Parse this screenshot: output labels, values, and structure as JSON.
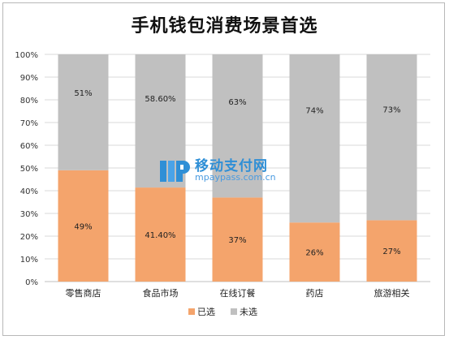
{
  "chart_data": {
    "type": "bar",
    "stacked": true,
    "percent": true,
    "title": "手机钱包消费场景首选",
    "categories": [
      "零售商店",
      "食品市场",
      "在线订餐",
      "药店",
      "旅游相关"
    ],
    "series": [
      {
        "name": "已选",
        "values": [
          49,
          41.4,
          37,
          26,
          27
        ],
        "labels": [
          "49%",
          "41.40%",
          "37%",
          "26%",
          "27%"
        ],
        "color": "#f4a46c"
      },
      {
        "name": "未选",
        "values": [
          51,
          58.6,
          63,
          74,
          73
        ],
        "labels": [
          "51%",
          "58.60%",
          "63%",
          "74%",
          "73%"
        ],
        "color": "#c0c0c0"
      }
    ],
    "yticks": [
      "0%",
      "10%",
      "20%",
      "30%",
      "40%",
      "50%",
      "60%",
      "70%",
      "80%",
      "90%",
      "100%"
    ],
    "ylim": [
      0,
      100
    ],
    "grid": true,
    "legend_position": "bottom"
  },
  "watermark": {
    "cn": "移动支付网",
    "en": "mpaypass.com.cn",
    "color": "#2f8fd6"
  }
}
